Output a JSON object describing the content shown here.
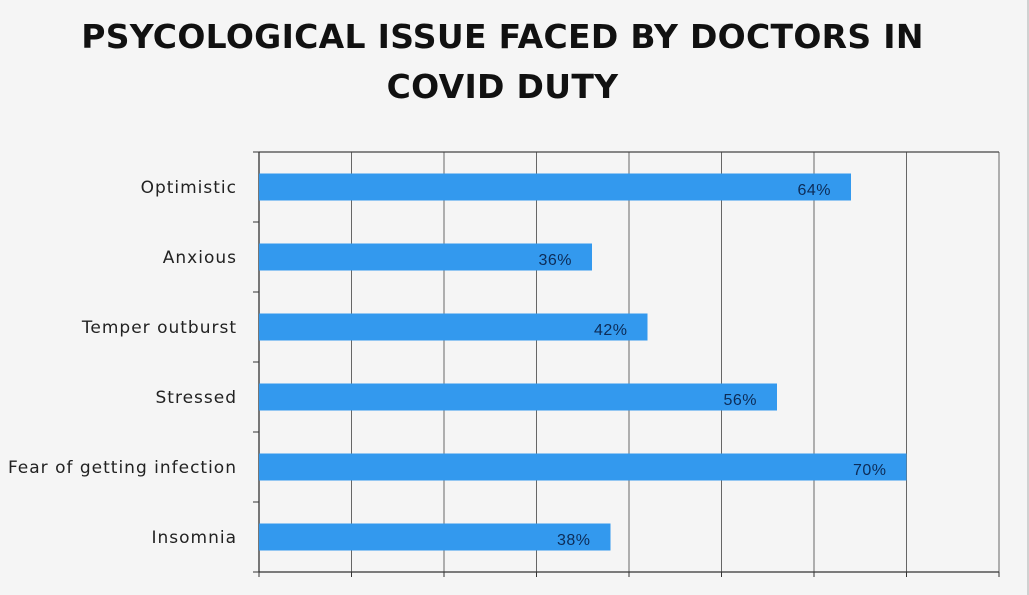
{
  "colors": {
    "bar": "#3399ee",
    "grid": "#666666",
    "background": "#f5f5f5"
  },
  "chart_data": {
    "type": "bar",
    "orientation": "horizontal",
    "title": "PSYCOLOGICAL ISSUE FACED BY DOCTORS IN COVID DUTY",
    "categories": [
      "Optimistic",
      "Anxious",
      "Temper outburst",
      "Stressed",
      "Fear of getting infection",
      "Insomnia"
    ],
    "values": [
      64,
      36,
      42,
      56,
      70,
      38
    ],
    "value_labels": [
      "64%",
      "36%",
      "42%",
      "56%",
      "70%",
      "38%"
    ],
    "unit": "%",
    "xlim": [
      0,
      80
    ],
    "xlabel": "",
    "ylabel": "",
    "grid": true,
    "legend": "none",
    "tick_labels_shown": false
  }
}
